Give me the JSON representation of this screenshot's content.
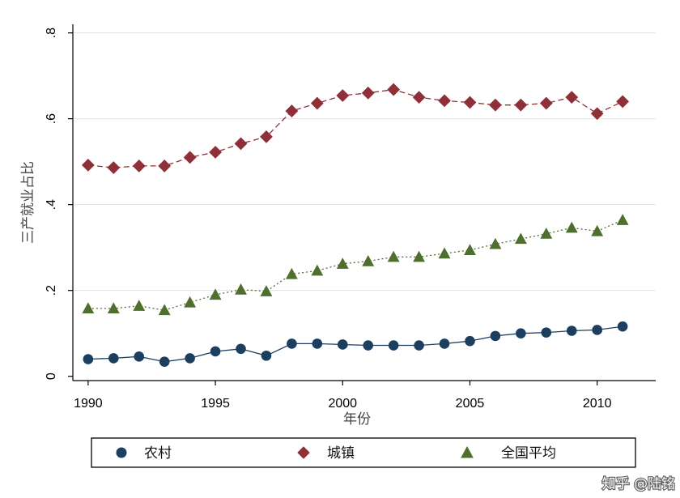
{
  "chart_data": {
    "type": "line",
    "title": "",
    "xlabel": "年份",
    "ylabel": "三产就业占比",
    "x": [
      1990,
      1991,
      1992,
      1993,
      1994,
      1995,
      1996,
      1997,
      1998,
      1999,
      2000,
      2001,
      2002,
      2003,
      2004,
      2005,
      2006,
      2007,
      2008,
      2009,
      2010,
      2011
    ],
    "xlim": [
      1989.4,
      2012.3
    ],
    "ylim": [
      -0.01,
      0.82
    ],
    "xticks": [
      1990,
      1995,
      2000,
      2005,
      2010
    ],
    "xtick_labels": [
      "1990",
      "1995",
      "2000",
      "2005",
      "2010"
    ],
    "yticks": [
      0,
      0.2,
      0.4,
      0.6,
      0.8
    ],
    "ytick_labels": [
      "0",
      ".2",
      ".4",
      ".6",
      ".8"
    ],
    "grid": true,
    "legend_position": "bottom",
    "series": [
      {
        "name": "农村",
        "marker": "circle",
        "line_style": "solid",
        "color": "#1c3f60",
        "values": [
          0.04,
          0.042,
          0.046,
          0.034,
          0.042,
          0.058,
          0.064,
          0.048,
          0.076,
          0.076,
          0.074,
          0.072,
          0.072,
          0.072,
          0.076,
          0.082,
          0.094,
          0.1,
          0.102,
          0.106,
          0.108,
          0.116
        ]
      },
      {
        "name": "城镇",
        "marker": "diamond",
        "line_style": "dashed",
        "color": "#8f2f37",
        "values": [
          0.492,
          0.486,
          0.49,
          0.49,
          0.51,
          0.522,
          0.542,
          0.558,
          0.618,
          0.636,
          0.654,
          0.66,
          0.668,
          0.65,
          0.642,
          0.638,
          0.632,
          0.632,
          0.636,
          0.65,
          0.612,
          0.64
        ]
      },
      {
        "name": "全国平均",
        "marker": "triangle",
        "line_style": "dotted",
        "color": "#4e6f2e",
        "values": [
          0.158,
          0.158,
          0.164,
          0.154,
          0.172,
          0.19,
          0.202,
          0.198,
          0.238,
          0.246,
          0.262,
          0.268,
          0.278,
          0.278,
          0.286,
          0.294,
          0.308,
          0.32,
          0.332,
          0.346,
          0.338,
          0.364
        ]
      }
    ]
  },
  "watermark": "知乎 @陆铭"
}
